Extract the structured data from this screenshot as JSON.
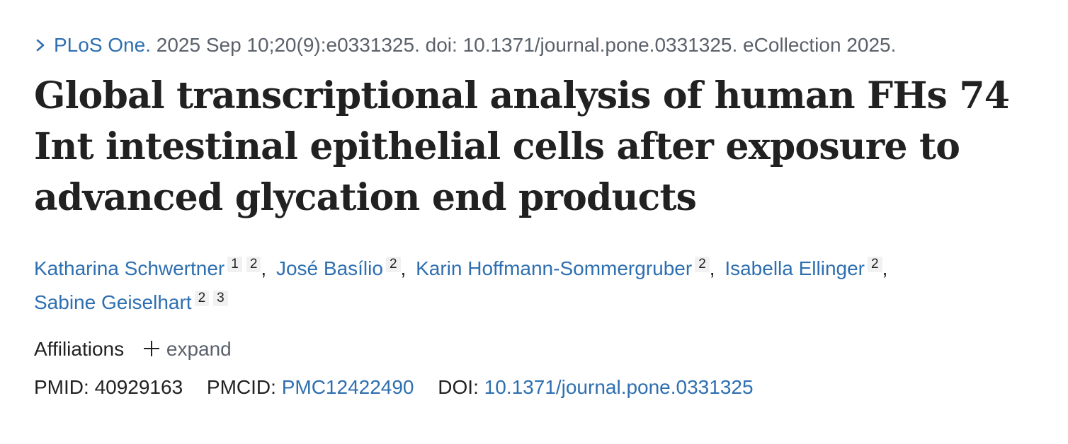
{
  "citation": {
    "journal": "PLoS One.",
    "details": "2025 Sep 10;20(9):e0331325. doi: 10.1371/journal.pone.0331325. eCollection 2025.",
    "expand_icon": "chevron-right-icon"
  },
  "title": "Global transcriptional analysis of human FHs 74 Int intestinal epithelial cells after exposure to advanced glycation end products",
  "authors": [
    {
      "name": "Katharina Schwertner",
      "refs": [
        "1",
        "2"
      ]
    },
    {
      "name": "José Basílio",
      "refs": [
        "2"
      ]
    },
    {
      "name": "Karin Hoffmann-Sommergruber",
      "refs": [
        "2"
      ]
    },
    {
      "name": "Isabella Ellinger",
      "refs": [
        "2"
      ]
    },
    {
      "name": "Sabine Geiselhart",
      "refs": [
        "2",
        "3"
      ]
    }
  ],
  "affiliations": {
    "label": "Affiliations",
    "expand_label": "expand",
    "expand_icon": "plus-icon"
  },
  "identifiers": {
    "pmid_label": "PMID:",
    "pmid_value": "40929163",
    "pmcid_label": "PMCID:",
    "pmcid_value": "PMC12422490",
    "doi_label": "DOI:",
    "doi_value": "10.1371/journal.pone.0331325"
  },
  "colors": {
    "link": "#2e6fb0",
    "text": "#212121",
    "muted": "#5b616b"
  }
}
